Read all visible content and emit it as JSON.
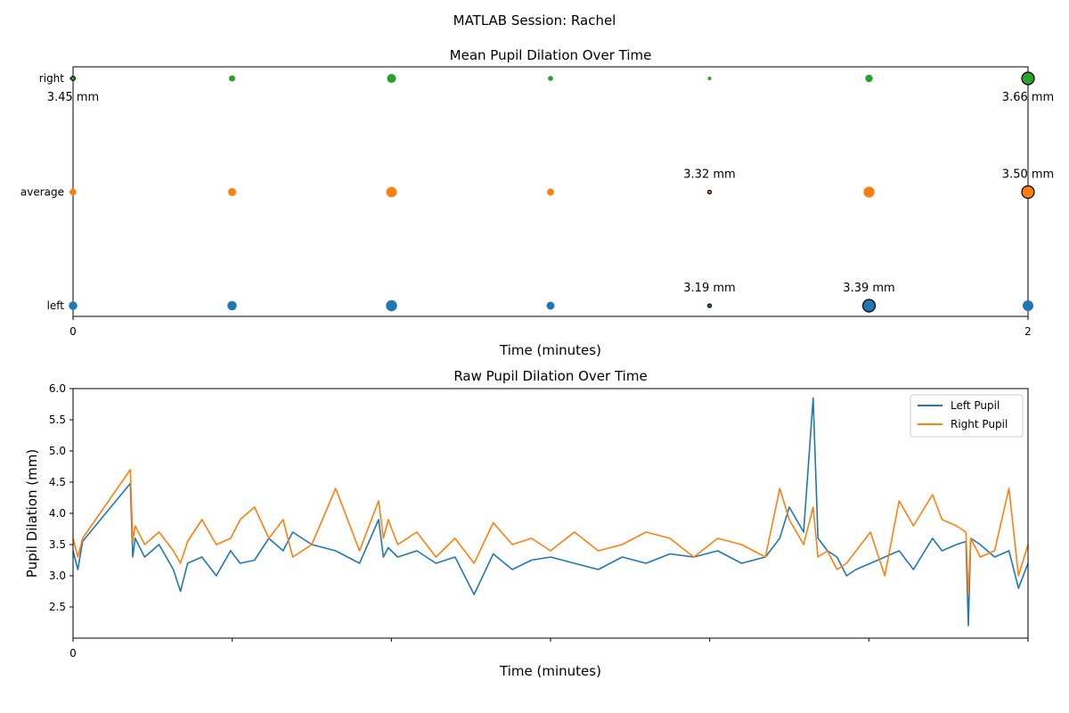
{
  "figure": {
    "suptitle": "MATLAB Session: Rachel"
  },
  "colors": {
    "left": "#1f77b4",
    "average": "#ff7f0e",
    "right": "#2ca02c",
    "left_line": "#1f77b4",
    "right_line": "#ff7f0e"
  },
  "chart_data": [
    {
      "type": "scatter",
      "title": "Mean Pupil Dilation Over Time",
      "xlabel": "Time (minutes)",
      "ylabel": "",
      "xlim": [
        0,
        2
      ],
      "x_ticks": [
        0,
        2
      ],
      "x_tick_labels": [
        "0",
        "2"
      ],
      "categories": [
        "left",
        "average",
        "right"
      ],
      "x": [
        0,
        0.333,
        0.667,
        1.0,
        1.333,
        1.667,
        2.0
      ],
      "series": [
        {
          "category": "left",
          "values": [
            3.3,
            3.32,
            3.36,
            3.29,
            3.19,
            3.39,
            3.35
          ],
          "highlight": [
            false,
            false,
            false,
            false,
            true,
            true,
            false
          ]
        },
        {
          "category": "average",
          "values": [
            3.38,
            3.41,
            3.46,
            3.39,
            3.32,
            3.47,
            3.5
          ],
          "highlight": [
            false,
            false,
            false,
            false,
            true,
            false,
            true
          ]
        },
        {
          "category": "right",
          "values": [
            3.45,
            3.5,
            3.57,
            3.47,
            3.43,
            3.53,
            3.66
          ],
          "highlight": [
            true,
            false,
            false,
            false,
            false,
            false,
            true
          ]
        }
      ],
      "annotations": [
        {
          "category": "right",
          "x": 0,
          "text": "3.45 mm",
          "position": "below"
        },
        {
          "category": "right",
          "x": 2.0,
          "text": "3.66 mm",
          "position": "below"
        },
        {
          "category": "average",
          "x": 1.333,
          "text": "3.32 mm",
          "position": "above"
        },
        {
          "category": "average",
          "x": 2.0,
          "text": "3.50 mm",
          "position": "above"
        },
        {
          "category": "left",
          "x": 1.333,
          "text": "3.19 mm",
          "position": "above"
        },
        {
          "category": "left",
          "x": 1.667,
          "text": "3.39 mm",
          "position": "above"
        }
      ],
      "grid": false
    },
    {
      "type": "line",
      "title": "Raw Pupil Dilation Over Time",
      "xlabel": "Time (minutes)",
      "ylabel": "Pupil Dilation (mm)",
      "xlim": [
        0,
        2
      ],
      "ylim": [
        2.0,
        6.0
      ],
      "x_tick_labels": [
        "0"
      ],
      "y_ticks": [
        2.5,
        3.0,
        3.5,
        4.0,
        4.5,
        5.0,
        5.5,
        6.0
      ],
      "legend_position": "top-right",
      "grid": false,
      "series": [
        {
          "name": "Left Pupil",
          "x": [
            0,
            0.01,
            0.02,
            0.12,
            0.125,
            0.13,
            0.15,
            0.18,
            0.21,
            0.225,
            0.24,
            0.27,
            0.3,
            0.33,
            0.35,
            0.38,
            0.41,
            0.44,
            0.46,
            0.5,
            0.55,
            0.6,
            0.64,
            0.65,
            0.66,
            0.68,
            0.72,
            0.76,
            0.8,
            0.84,
            0.88,
            0.92,
            0.96,
            1.0,
            1.05,
            1.1,
            1.15,
            1.2,
            1.25,
            1.3,
            1.35,
            1.4,
            1.45,
            1.48,
            1.5,
            1.53,
            1.55,
            1.56,
            1.58,
            1.6,
            1.62,
            1.64,
            1.67,
            1.7,
            1.73,
            1.76,
            1.8,
            1.82,
            1.85,
            1.87,
            1.875,
            1.88,
            1.9,
            1.93,
            1.96,
            1.98,
            2.0
          ],
          "y": [
            3.4,
            3.1,
            3.55,
            4.48,
            3.3,
            3.6,
            3.3,
            3.5,
            3.1,
            2.75,
            3.2,
            3.3,
            3.0,
            3.4,
            3.2,
            3.25,
            3.6,
            3.4,
            3.7,
            3.5,
            3.4,
            3.2,
            3.9,
            3.3,
            3.45,
            3.3,
            3.4,
            3.2,
            3.3,
            2.7,
            3.35,
            3.1,
            3.25,
            3.3,
            3.2,
            3.1,
            3.3,
            3.2,
            3.35,
            3.3,
            3.4,
            3.2,
            3.3,
            3.6,
            4.1,
            3.7,
            5.85,
            3.6,
            3.4,
            3.3,
            3.0,
            3.1,
            3.2,
            3.3,
            3.4,
            3.1,
            3.6,
            3.4,
            3.5,
            3.55,
            2.2,
            3.6,
            3.5,
            3.3,
            3.4,
            2.8,
            3.2
          ]
        },
        {
          "name": "Right Pupil",
          "x": [
            0,
            0.01,
            0.02,
            0.12,
            0.125,
            0.13,
            0.15,
            0.18,
            0.21,
            0.225,
            0.24,
            0.27,
            0.3,
            0.33,
            0.35,
            0.38,
            0.41,
            0.44,
            0.46,
            0.5,
            0.55,
            0.6,
            0.64,
            0.65,
            0.66,
            0.68,
            0.72,
            0.76,
            0.8,
            0.84,
            0.88,
            0.92,
            0.96,
            1.0,
            1.05,
            1.1,
            1.15,
            1.2,
            1.25,
            1.3,
            1.35,
            1.4,
            1.45,
            1.48,
            1.5,
            1.53,
            1.55,
            1.56,
            1.58,
            1.6,
            1.62,
            1.64,
            1.67,
            1.7,
            1.73,
            1.76,
            1.8,
            1.82,
            1.85,
            1.87,
            1.875,
            1.88,
            1.9,
            1.93,
            1.96,
            1.98,
            2.0
          ],
          "y": [
            3.6,
            3.3,
            3.6,
            4.7,
            3.55,
            3.8,
            3.5,
            3.7,
            3.4,
            3.2,
            3.55,
            3.9,
            3.5,
            3.6,
            3.9,
            4.1,
            3.6,
            3.9,
            3.3,
            3.5,
            4.4,
            3.4,
            4.2,
            3.6,
            3.9,
            3.5,
            3.7,
            3.3,
            3.6,
            3.2,
            3.85,
            3.5,
            3.6,
            3.4,
            3.7,
            3.4,
            3.5,
            3.7,
            3.6,
            3.3,
            3.6,
            3.5,
            3.3,
            4.4,
            3.9,
            3.5,
            4.1,
            3.3,
            3.4,
            3.1,
            3.2,
            3.4,
            3.7,
            3.0,
            4.2,
            3.8,
            4.3,
            3.9,
            3.8,
            3.7,
            2.7,
            3.6,
            3.3,
            3.4,
            4.4,
            3.0,
            3.5
          ]
        }
      ]
    }
  ]
}
